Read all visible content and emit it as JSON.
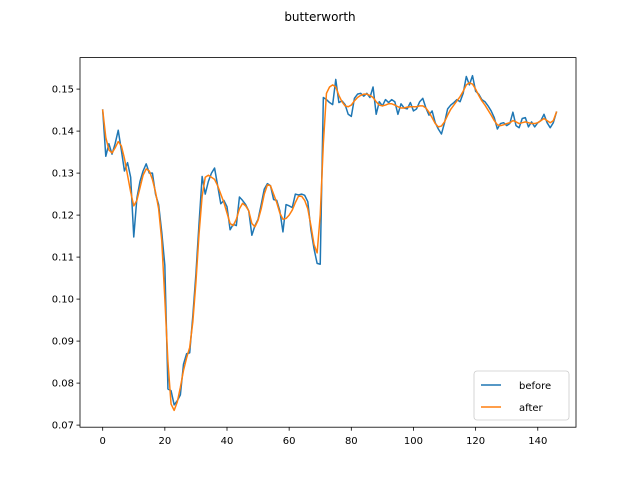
{
  "chart_data": {
    "type": "line",
    "title": "butterworth",
    "xlabel": "",
    "ylabel": "",
    "xlim": [
      -7.3,
      152.3
    ],
    "ylim": [
      0.0695,
      0.1575
    ],
    "xticks": [
      0,
      20,
      40,
      60,
      80,
      100,
      120,
      140
    ],
    "yticks": [
      0.07,
      0.08,
      0.09,
      0.1,
      0.11,
      0.12,
      0.13,
      0.14,
      0.15
    ],
    "ytick_labels": [
      "0.07",
      "0.08",
      "0.09",
      "0.10",
      "0.11",
      "0.12",
      "0.13",
      "0.14",
      "0.15"
    ],
    "grid": false,
    "legend": "lower-right",
    "series": [
      {
        "name": "before",
        "color": "#1f77b4",
        "values": [
          0.145,
          0.134,
          0.137,
          0.1345,
          0.137,
          0.1402,
          0.1355,
          0.1305,
          0.1325,
          0.129,
          0.1148,
          0.124,
          0.128,
          0.1305,
          0.1322,
          0.13,
          0.13,
          0.125,
          0.1225,
          0.116,
          0.108,
          0.0786,
          0.0782,
          0.0748,
          0.0758,
          0.0772,
          0.0845,
          0.087,
          0.0872,
          0.096,
          0.106,
          0.118,
          0.1292,
          0.125,
          0.128,
          0.13,
          0.1312,
          0.127,
          0.1227,
          0.1235,
          0.122,
          0.1165,
          0.1178,
          0.1175,
          0.1243,
          0.1235,
          0.1225,
          0.121,
          0.1152,
          0.1175,
          0.119,
          0.1225,
          0.1262,
          0.1275,
          0.127,
          0.1237,
          0.1235,
          0.121,
          0.116,
          0.1225,
          0.1222,
          0.1218,
          0.125,
          0.1248,
          0.125,
          0.1247,
          0.1232,
          0.1165,
          0.112,
          0.1085,
          0.1083,
          0.148,
          0.1475,
          0.1468,
          0.1463,
          0.1523,
          0.1468,
          0.1472,
          0.1463,
          0.144,
          0.1435,
          0.1478,
          0.1488,
          0.149,
          0.1483,
          0.149,
          0.148,
          0.1505,
          0.144,
          0.147,
          0.146,
          0.1475,
          0.1468,
          0.1475,
          0.147,
          0.144,
          0.1465,
          0.1455,
          0.1453,
          0.1468,
          0.1448,
          0.1453,
          0.147,
          0.1478,
          0.1455,
          0.1438,
          0.1448,
          0.142,
          0.1405,
          0.1393,
          0.142,
          0.1453,
          0.1462,
          0.1468,
          0.1475,
          0.147,
          0.149,
          0.153,
          0.151,
          0.1532,
          0.1495,
          0.1488,
          0.1475,
          0.147,
          0.146,
          0.1448,
          0.1432,
          0.1405,
          0.1418,
          0.142,
          0.1413,
          0.1418,
          0.1445,
          0.1413,
          0.1408,
          0.143,
          0.1432,
          0.141,
          0.1422,
          0.141,
          0.142,
          0.1425,
          0.144,
          0.142,
          0.1408,
          0.142,
          0.1445
        ]
      },
      {
        "name": "after",
        "color": "#ff7f0e",
        "values": [
          0.145,
          0.1385,
          0.1355,
          0.1348,
          0.136,
          0.1375,
          0.1365,
          0.1335,
          0.1295,
          0.1255,
          0.1222,
          0.1235,
          0.1265,
          0.1295,
          0.131,
          0.1305,
          0.1285,
          0.1255,
          0.1215,
          0.114,
          0.1,
          0.085,
          0.075,
          0.0735,
          0.0755,
          0.079,
          0.083,
          0.086,
          0.0885,
          0.0945,
          0.104,
          0.1155,
          0.1245,
          0.129,
          0.1295,
          0.129,
          0.1285,
          0.127,
          0.125,
          0.123,
          0.1205,
          0.118,
          0.1175,
          0.119,
          0.1215,
          0.1228,
          0.1222,
          0.121,
          0.118,
          0.1172,
          0.1188,
          0.1215,
          0.125,
          0.1272,
          0.127,
          0.125,
          0.123,
          0.1205,
          0.119,
          0.1192,
          0.12,
          0.1212,
          0.123,
          0.1245,
          0.1245,
          0.1235,
          0.1215,
          0.1175,
          0.113,
          0.111,
          0.12,
          0.137,
          0.149,
          0.1505,
          0.151,
          0.1505,
          0.1485,
          0.147,
          0.146,
          0.1458,
          0.1462,
          0.1472,
          0.148,
          0.1485,
          0.1488,
          0.1488,
          0.1485,
          0.148,
          0.147,
          0.1462,
          0.146,
          0.1462,
          0.1465,
          0.1465,
          0.1462,
          0.1458,
          0.1455,
          0.1455,
          0.1457,
          0.1458,
          0.1458,
          0.1458,
          0.146,
          0.146,
          0.1455,
          0.1445,
          0.1432,
          0.1418,
          0.141,
          0.1412,
          0.1422,
          0.1438,
          0.1452,
          0.1462,
          0.1472,
          0.1482,
          0.1495,
          0.151,
          0.1515,
          0.1512,
          0.15,
          0.1485,
          0.1472,
          0.1462,
          0.145,
          0.1438,
          0.1425,
          0.1415,
          0.1413,
          0.1415,
          0.1418,
          0.142,
          0.1425,
          0.1422,
          0.1418,
          0.142,
          0.1422,
          0.142,
          0.1418,
          0.1418,
          0.142,
          0.1425,
          0.143,
          0.1425,
          0.142,
          0.1425,
          0.1445
        ]
      }
    ]
  }
}
